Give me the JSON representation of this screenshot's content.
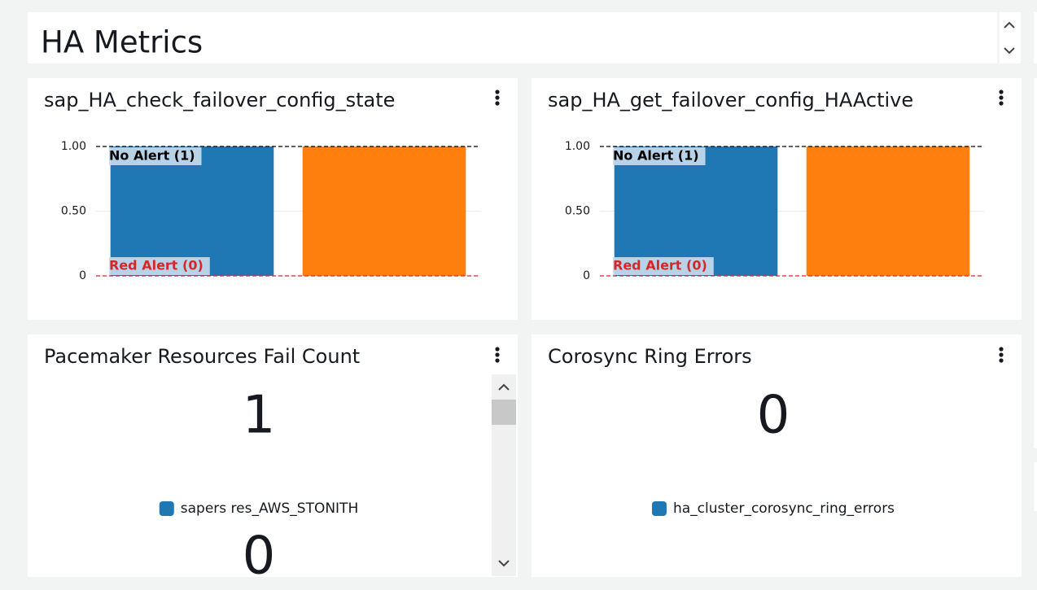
{
  "header": {
    "title": "HA Metrics"
  },
  "chart_data": [
    {
      "type": "bar",
      "title": "sap_HA_check_failover_config_state",
      "categories": [
        null,
        null
      ],
      "values": [
        1,
        1
      ],
      "colors": [
        "#1f77b4",
        "#ff7f0e"
      ],
      "ylim": [
        0,
        1
      ],
      "yticks": [
        {
          "value": 1,
          "label": "1.00"
        },
        {
          "value": 0.5,
          "label": "0.50"
        },
        0
      ],
      "grid": true,
      "annotations": [
        {
          "label": "No Alert (1)",
          "value": 1,
          "color": "#000000"
        },
        {
          "label": "Red Alert (0)",
          "value": 0,
          "color": "#d62728"
        }
      ]
    },
    {
      "type": "bar",
      "title": "sap_HA_get_failover_config_HAActive",
      "categories": [
        null,
        null
      ],
      "values": [
        1,
        1
      ],
      "colors": [
        "#1f77b4",
        "#ff7f0e"
      ],
      "ylim": [
        0,
        1
      ],
      "yticks": [
        {
          "value": 1,
          "label": "1.00"
        },
        {
          "value": 0.5,
          "label": "0.50"
        },
        0
      ],
      "grid": true,
      "annotations": [
        {
          "label": "No Alert (1)",
          "value": 1,
          "color": "#000000"
        },
        {
          "label": "Red Alert (0)",
          "value": 0,
          "color": "#d62728"
        }
      ]
    }
  ],
  "stat_panels": [
    {
      "title": "Pacemaker Resources Fail Count",
      "scrollbar": true,
      "items": [
        {
          "value": 1,
          "label": "sapers res_AWS_STONITH",
          "color": "#1f77b4"
        },
        {
          "value": 0
        }
      ]
    },
    {
      "title": "Corosync Ring Errors",
      "scrollbar": false,
      "items": [
        {
          "value": 0,
          "label": "ha_cluster_corosync_ring_errors",
          "color": "#1f77b4"
        }
      ]
    }
  ]
}
